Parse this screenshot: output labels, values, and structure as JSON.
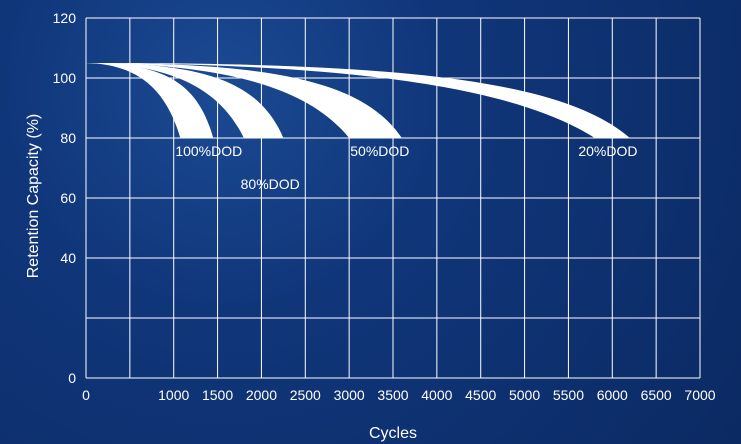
{
  "chart_data": {
    "type": "area",
    "xlabel": "Cycles",
    "ylabel": "Retention Capacity (%)",
    "xlim": [
      0,
      7000
    ],
    "ylim": [
      0,
      120
    ],
    "x_ticks": [
      0,
      1000,
      1500,
      2000,
      2500,
      3000,
      3500,
      4000,
      4500,
      5000,
      5500,
      6000,
      6500,
      7000
    ],
    "x_tick_labels": [
      "0",
      "1000",
      "1500",
      "2000",
      "2500",
      "3000",
      "3500",
      "4000",
      "4500",
      "5000",
      "5500",
      "6000",
      "6500",
      "7000"
    ],
    "y_ticks": [
      0,
      20,
      40,
      60,
      80,
      100,
      120
    ],
    "y_tick_labels": [
      "0",
      "",
      "40",
      "60",
      "80",
      "100",
      "120"
    ],
    "grid": true,
    "band_color": "#ffffff",
    "series": [
      {
        "name": "100%DOD",
        "start": [
          0,
          105
        ],
        "inner_end": [
          1075,
          80
        ],
        "outer_end": [
          1450,
          80
        ],
        "label_pos": [
          1400,
          74
        ]
      },
      {
        "name": "80%DOD",
        "start": [
          0,
          105
        ],
        "inner_end": [
          1800,
          80
        ],
        "outer_end": [
          2250,
          80
        ],
        "label_pos": [
          2100,
          63
        ]
      },
      {
        "name": "50%DOD",
        "start": [
          0,
          105
        ],
        "inner_end": [
          3000,
          80
        ],
        "outer_end": [
          3600,
          80
        ],
        "label_pos": [
          3350,
          74
        ]
      },
      {
        "name": "20%DOD",
        "start": [
          0,
          105
        ],
        "inner_end": [
          5800,
          80
        ],
        "outer_end": [
          6200,
          80
        ],
        "label_pos": [
          5950,
          74
        ]
      }
    ]
  }
}
